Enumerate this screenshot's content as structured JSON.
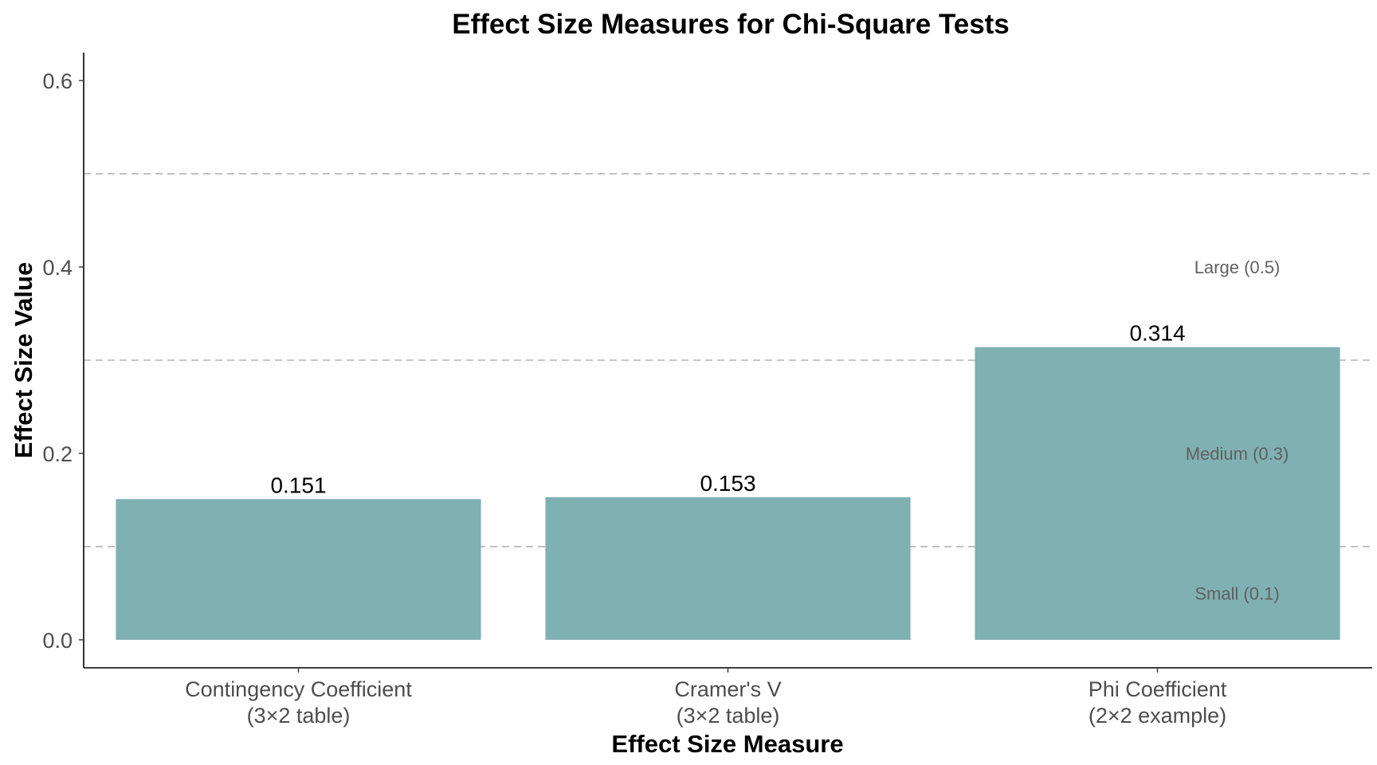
{
  "chart_data": {
    "type": "bar",
    "title": "Effect Size Measures for Chi-Square Tests",
    "xlabel": "Effect Size Measure",
    "ylabel": "Effect Size Value",
    "categories": [
      [
        "Contingency Coefficient",
        "(3×2 table)"
      ],
      [
        "Cramer's V",
        "(3×2 table)"
      ],
      [
        "Phi Coefficient",
        "(2×2 example)"
      ]
    ],
    "values": [
      0.151,
      0.153,
      0.314
    ],
    "value_labels": [
      "0.151",
      "0.153",
      "0.314"
    ],
    "ylim": [
      -0.03,
      0.63
    ],
    "yticks": [
      0.0,
      0.2,
      0.4,
      0.6
    ],
    "ytick_labels": [
      "0.0",
      "0.2",
      "0.4",
      "0.6"
    ],
    "grid": false,
    "bar_color": "#7fb0b2",
    "reference_lines": [
      {
        "value": 0.1,
        "label": "Small (0.1)",
        "label_y": 0.05
      },
      {
        "value": 0.3,
        "label": "Medium (0.3)",
        "label_y": 0.2
      },
      {
        "value": 0.5,
        "label": "Large (0.5)",
        "label_y": 0.4
      }
    ],
    "reference_line_color": "#b3b3b3",
    "reference_label_color": "#606060"
  }
}
